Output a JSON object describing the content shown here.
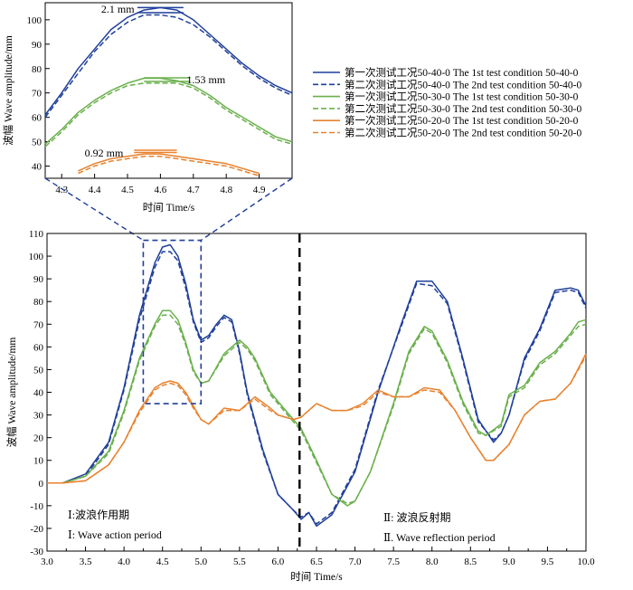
{
  "chart_data": [
    {
      "type": "line",
      "panel": "main",
      "xlabel": "时间 Time/s",
      "ylabel": "波幅 Wave amplitude/mm",
      "xlim": [
        3.0,
        10.0
      ],
      "ylim": [
        -30,
        110
      ],
      "xticks": [
        "3.0",
        "3.5",
        "4.0",
        "4.5",
        "5.0",
        "5.5",
        "6.0",
        "6.5",
        "7.0",
        "7.5",
        "8.0",
        "8.5",
        "9.0",
        "9.5",
        "10.0"
      ],
      "yticks": [
        "-30",
        "-20",
        "-10",
        "0",
        "10",
        "20",
        "30",
        "40",
        "50",
        "60",
        "70",
        "80",
        "90",
        "100",
        "110"
      ],
      "divider_x": 6.28,
      "zoom_box": {
        "x": [
          4.25,
          5.0
        ],
        "y": [
          35,
          107
        ]
      },
      "period_labels": {
        "p1_cn": "Ⅰ:波浪作用期",
        "p1_en": "Ⅰ: Wave action period",
        "p2_cn": "Ⅱ: 波浪反射期",
        "p2_en": "Ⅱ. Wave reflection period"
      },
      "series": [
        {
          "name": "第一次测试工况50-40-0 The 1st test condition 50-40-0",
          "color": "#1f3f9a",
          "dash": false,
          "x": [
            3.0,
            3.2,
            3.5,
            3.8,
            4.0,
            4.2,
            4.4,
            4.5,
            4.6,
            4.7,
            4.8,
            4.9,
            5.0,
            5.1,
            5.2,
            5.3,
            5.4,
            5.5,
            5.6,
            5.8,
            6.0,
            6.2,
            6.3,
            6.4,
            6.5,
            6.7,
            7.0,
            7.3,
            7.6,
            7.8,
            8.0,
            8.2,
            8.4,
            8.6,
            8.8,
            8.9,
            9.0,
            9.2,
            9.4,
            9.6,
            9.8,
            9.9,
            10.0
          ],
          "y": [
            0,
            0,
            4,
            18,
            42,
            74,
            97,
            104,
            105,
            100,
            88,
            72,
            63,
            65,
            70,
            74,
            72,
            58,
            40,
            15,
            -5,
            -12,
            -16,
            -13,
            -19,
            -14,
            5,
            40,
            70,
            89,
            89,
            80,
            55,
            28,
            18,
            22,
            30,
            55,
            68,
            85,
            86,
            85,
            78
          ]
        },
        {
          "name": "第二次测试工况50-40-0 The 2nd test condition 50-40-0",
          "color": "#1f3f9a",
          "dash": true,
          "x": [
            3.0,
            3.2,
            3.5,
            3.8,
            4.0,
            4.2,
            4.4,
            4.5,
            4.6,
            4.7,
            4.8,
            4.9,
            5.0,
            5.1,
            5.2,
            5.3,
            5.4,
            5.5,
            5.6,
            5.8,
            6.0,
            6.2,
            6.3,
            6.4,
            6.5,
            6.7,
            7.0,
            7.3,
            7.6,
            7.8,
            8.0,
            8.2,
            8.4,
            8.6,
            8.8,
            8.9,
            9.0,
            9.2,
            9.4,
            9.6,
            9.8,
            9.9,
            10.0
          ],
          "y": [
            0,
            0,
            3,
            17,
            41,
            72,
            95,
            102,
            102,
            98,
            86,
            71,
            62,
            64,
            69,
            73,
            71,
            57,
            39,
            14,
            -5,
            -12,
            -15,
            -13,
            -18,
            -13,
            6,
            41,
            69,
            88,
            87,
            79,
            54,
            27,
            19,
            22,
            30,
            54,
            67,
            84,
            85,
            84,
            77
          ]
        },
        {
          "name": "第一次测试工况50-30-0 The 1st test condition 50-30-0",
          "color": "#6ab04c",
          "dash": false,
          "x": [
            3.0,
            3.2,
            3.5,
            3.8,
            4.0,
            4.2,
            4.4,
            4.5,
            4.6,
            4.7,
            4.8,
            4.9,
            5.0,
            5.1,
            5.3,
            5.5,
            5.6,
            5.7,
            5.9,
            6.1,
            6.3,
            6.5,
            6.7,
            6.9,
            7.0,
            7.2,
            7.5,
            7.7,
            7.9,
            8.0,
            8.2,
            8.4,
            8.6,
            8.7,
            8.9,
            9.0,
            9.2,
            9.4,
            9.6,
            9.8,
            9.9,
            10.0
          ],
          "y": [
            0,
            0,
            3,
            14,
            32,
            55,
            70,
            76,
            76,
            72,
            62,
            50,
            44,
            45,
            57,
            63,
            60,
            55,
            40,
            32,
            24,
            10,
            -5,
            -10,
            -8,
            5,
            35,
            58,
            69,
            67,
            54,
            36,
            23,
            21,
            26,
            39,
            43,
            53,
            58,
            66,
            71,
            72
          ]
        },
        {
          "name": "第二次测试工况50-30-0 The 2nd test condition 50-30-0",
          "color": "#6ab04c",
          "dash": true,
          "x": [
            3.0,
            3.2,
            3.5,
            3.8,
            4.0,
            4.2,
            4.4,
            4.5,
            4.6,
            4.7,
            4.8,
            4.9,
            5.0,
            5.1,
            5.3,
            5.5,
            5.6,
            5.7,
            5.9,
            6.1,
            6.3,
            6.5,
            6.7,
            6.9,
            7.0,
            7.2,
            7.5,
            7.7,
            7.9,
            8.0,
            8.2,
            8.4,
            8.6,
            8.7,
            8.9,
            9.0,
            9.2,
            9.4,
            9.6,
            9.8,
            9.9,
            10.0
          ],
          "y": [
            0,
            0,
            3,
            13,
            31,
            54,
            69,
            74,
            74,
            70,
            61,
            49,
            44,
            45,
            56,
            62,
            59,
            54,
            39,
            31,
            23,
            9,
            -5,
            -9,
            -8,
            5,
            34,
            57,
            68,
            66,
            53,
            35,
            22,
            21,
            25,
            38,
            42,
            52,
            57,
            65,
            69,
            70
          ]
        },
        {
          "name": "第一次测试工况50-20-0 The 1st test condition 50-20-0",
          "color": "#e8822e",
          "dash": false,
          "x": [
            3.0,
            3.2,
            3.5,
            3.8,
            4.0,
            4.2,
            4.4,
            4.5,
            4.6,
            4.7,
            4.8,
            4.9,
            5.0,
            5.1,
            5.3,
            5.5,
            5.7,
            5.9,
            6.0,
            6.2,
            6.3,
            6.5,
            6.7,
            6.9,
            7.1,
            7.3,
            7.5,
            7.7,
            7.9,
            8.1,
            8.3,
            8.5,
            8.7,
            8.8,
            9.0,
            9.2,
            9.4,
            9.6,
            9.8,
            10.0
          ],
          "y": [
            0,
            0,
            1,
            8,
            18,
            32,
            42,
            44,
            45,
            44,
            40,
            34,
            28,
            26,
            33,
            32,
            38,
            33,
            30,
            28,
            29,
            35,
            32,
            32,
            35,
            41,
            38,
            38,
            42,
            41,
            32,
            20,
            10,
            10,
            17,
            30,
            36,
            37,
            44,
            57
          ]
        },
        {
          "name": "第二次测试工况50-20-0 The 2nd test condition 50-20-0",
          "color": "#e8822e",
          "dash": true,
          "x": [
            3.0,
            3.2,
            3.5,
            3.8,
            4.0,
            4.2,
            4.4,
            4.5,
            4.6,
            4.7,
            4.8,
            4.9,
            5.0,
            5.1,
            5.3,
            5.5,
            5.7,
            5.9,
            6.0,
            6.2,
            6.3,
            6.5,
            6.7,
            6.9,
            7.1,
            7.3,
            7.5,
            7.7,
            7.9,
            8.1,
            8.3,
            8.5,
            8.7,
            8.8,
            9.0,
            9.2,
            9.4,
            9.6,
            9.8,
            10.0
          ],
          "y": [
            0,
            0,
            1,
            8,
            18,
            31,
            41,
            43,
            44,
            43,
            39,
            33,
            28,
            26,
            32,
            32,
            37,
            32,
            30,
            28,
            29,
            35,
            32,
            32,
            34,
            40,
            38,
            38,
            41,
            40,
            32,
            20,
            10,
            10,
            17,
            30,
            36,
            37,
            44,
            56
          ]
        }
      ]
    },
    {
      "type": "line",
      "panel": "inset",
      "xlabel": "时间 Time/s",
      "ylabel": "波幅 Wave amplitude/mm",
      "xlim": [
        4.25,
        5.0
      ],
      "ylim": [
        35,
        107
      ],
      "xticks": [
        "4.3",
        "4.4",
        "4.5",
        "4.6",
        "4.7",
        "4.8",
        "4.9"
      ],
      "yticks": [
        "40",
        "50",
        "60",
        "70",
        "80",
        "90",
        "100"
      ],
      "annotations": [
        {
          "text": "2.1 mm",
          "x": 4.42,
          "y": 103
        },
        {
          "text": "1.53 mm",
          "x": 4.68,
          "y": 74
        },
        {
          "text": "0.92 mm",
          "x": 4.37,
          "y": 44
        }
      ],
      "series": [
        {
          "name": "第一次测试工况50-40-0",
          "color": "#1f3f9a",
          "dash": false,
          "x": [
            4.25,
            4.3,
            4.35,
            4.4,
            4.45,
            4.5,
            4.55,
            4.6,
            4.65,
            4.7,
            4.75,
            4.8,
            4.85,
            4.9,
            4.95,
            5.0
          ],
          "y": [
            61,
            70,
            80,
            88,
            96,
            101,
            104,
            105,
            104,
            100,
            94,
            88,
            82,
            77,
            73,
            70
          ]
        },
        {
          "name": "第二次测试工况50-40-0",
          "color": "#1f3f9a",
          "dash": true,
          "x": [
            4.25,
            4.3,
            4.35,
            4.4,
            4.45,
            4.5,
            4.55,
            4.6,
            4.65,
            4.7,
            4.75,
            4.8,
            4.85,
            4.9,
            4.95,
            5.0
          ],
          "y": [
            60,
            69,
            78,
            87,
            94,
            99,
            102,
            102,
            101,
            98,
            93,
            87,
            81,
            76,
            72,
            69
          ]
        },
        {
          "name": "第一次测试工况50-30-0",
          "color": "#6ab04c",
          "dash": false,
          "x": [
            4.25,
            4.3,
            4.35,
            4.4,
            4.45,
            4.5,
            4.55,
            4.6,
            4.65,
            4.7,
            4.75,
            4.8,
            4.85,
            4.9,
            4.95,
            5.0
          ],
          "y": [
            49,
            55,
            62,
            67,
            71,
            74,
            76,
            76,
            75,
            73,
            69,
            64,
            60,
            56,
            52,
            50
          ]
        },
        {
          "name": "第二次测试工况50-30-0",
          "color": "#6ab04c",
          "dash": true,
          "x": [
            4.25,
            4.3,
            4.35,
            4.4,
            4.45,
            4.5,
            4.55,
            4.6,
            4.65,
            4.7,
            4.75,
            4.8,
            4.85,
            4.9,
            4.95,
            5.0
          ],
          "y": [
            48,
            54,
            61,
            66,
            70,
            73,
            74,
            74,
            74,
            72,
            68,
            63,
            59,
            55,
            51,
            49
          ]
        },
        {
          "name": "第一次测试工况50-20-0",
          "color": "#e8822e",
          "dash": false,
          "x": [
            4.35,
            4.4,
            4.45,
            4.5,
            4.55,
            4.6,
            4.65,
            4.7,
            4.75,
            4.8,
            4.85,
            4.9
          ],
          "y": [
            38,
            41,
            43,
            44,
            45,
            45,
            44,
            43,
            42,
            41,
            39,
            37
          ]
        },
        {
          "name": "第二次测试工况50-20-0",
          "color": "#e8822e",
          "dash": true,
          "x": [
            4.35,
            4.4,
            4.45,
            4.5,
            4.55,
            4.6,
            4.65,
            4.7,
            4.75,
            4.8,
            4.85,
            4.9
          ],
          "y": [
            37,
            40,
            42,
            43,
            44,
            44,
            43,
            42,
            41,
            40,
            38,
            36
          ]
        }
      ]
    }
  ]
}
